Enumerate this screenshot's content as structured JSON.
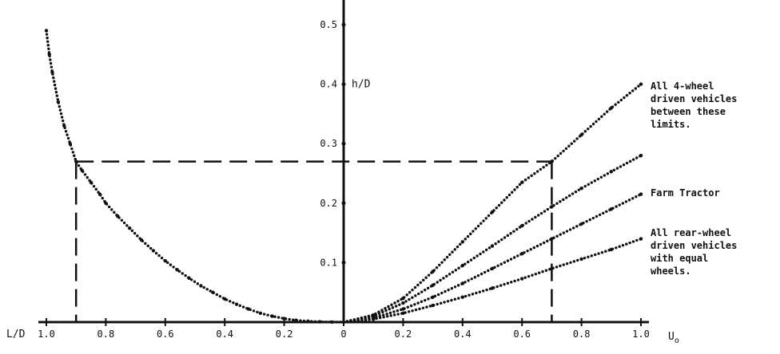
{
  "chart_data": {
    "type": "scatter",
    "x_axis": {
      "left_label": "L/D",
      "right_label": "U",
      "right_label_subscript": "o",
      "left_ticks": [
        "1.0",
        "0.8",
        "0.6",
        "0.4",
        "0.2"
      ],
      "right_ticks": [
        "0",
        "0.2",
        "0.4",
        "0.6",
        "0.8",
        "1.0"
      ],
      "left_range": [
        1.0,
        0
      ],
      "right_range": [
        0,
        1.0
      ]
    },
    "y_axis": {
      "label": "h/D",
      "ticks": [
        "0.5",
        "0.4",
        "0.3",
        "0.2",
        "0.1"
      ],
      "range": [
        0,
        0.55
      ]
    },
    "series": [
      {
        "id": "ld-curve",
        "side": "left",
        "points": [
          [
            1.0,
            0.49
          ],
          [
            0.99,
            0.45
          ],
          [
            0.98,
            0.42
          ],
          [
            0.96,
            0.37
          ],
          [
            0.94,
            0.33
          ],
          [
            0.92,
            0.3
          ],
          [
            0.9,
            0.27
          ],
          [
            0.88,
            0.255
          ],
          [
            0.85,
            0.235
          ],
          [
            0.82,
            0.215
          ],
          [
            0.8,
            0.2
          ],
          [
            0.76,
            0.178
          ],
          [
            0.72,
            0.158
          ],
          [
            0.68,
            0.138
          ],
          [
            0.64,
            0.12
          ],
          [
            0.6,
            0.103
          ],
          [
            0.56,
            0.088
          ],
          [
            0.52,
            0.074
          ],
          [
            0.48,
            0.061
          ],
          [
            0.44,
            0.05
          ],
          [
            0.4,
            0.039
          ],
          [
            0.36,
            0.03
          ],
          [
            0.32,
            0.022
          ],
          [
            0.28,
            0.015
          ],
          [
            0.24,
            0.01
          ],
          [
            0.2,
            0.006
          ],
          [
            0.16,
            0.003
          ],
          [
            0.12,
            0.0015
          ],
          [
            0.08,
            0.0005
          ],
          [
            0.04,
            0.0001
          ],
          [
            0.0,
            0.0
          ]
        ]
      },
      {
        "id": "upper-4wd-limit",
        "side": "right",
        "points": [
          [
            0,
            0
          ],
          [
            0.1,
            0.012
          ],
          [
            0.2,
            0.04
          ],
          [
            0.3,
            0.085
          ],
          [
            0.4,
            0.135
          ],
          [
            0.5,
            0.185
          ],
          [
            0.6,
            0.235
          ],
          [
            0.7,
            0.27
          ],
          [
            0.8,
            0.315
          ],
          [
            0.9,
            0.36
          ],
          [
            1.0,
            0.4
          ]
        ]
      },
      {
        "id": "lower-4wd-limit",
        "side": "right",
        "points": [
          [
            0,
            0
          ],
          [
            0.1,
            0.01
          ],
          [
            0.2,
            0.032
          ],
          [
            0.3,
            0.062
          ],
          [
            0.4,
            0.095
          ],
          [
            0.5,
            0.128
          ],
          [
            0.6,
            0.162
          ],
          [
            0.7,
            0.194
          ],
          [
            0.8,
            0.225
          ],
          [
            0.9,
            0.253
          ],
          [
            1.0,
            0.28
          ]
        ]
      },
      {
        "id": "farm-tractor",
        "side": "right",
        "points": [
          [
            0,
            0
          ],
          [
            0.1,
            0.007
          ],
          [
            0.2,
            0.022
          ],
          [
            0.3,
            0.042
          ],
          [
            0.4,
            0.065
          ],
          [
            0.5,
            0.09
          ],
          [
            0.6,
            0.115
          ],
          [
            0.7,
            0.14
          ],
          [
            0.8,
            0.165
          ],
          [
            0.9,
            0.19
          ],
          [
            1.0,
            0.215
          ]
        ]
      },
      {
        "id": "rear-wheel-equal",
        "side": "right",
        "points": [
          [
            0,
            0
          ],
          [
            0.1,
            0.005
          ],
          [
            0.2,
            0.015
          ],
          [
            0.3,
            0.028
          ],
          [
            0.4,
            0.042
          ],
          [
            0.5,
            0.057
          ],
          [
            0.6,
            0.073
          ],
          [
            0.7,
            0.09
          ],
          [
            0.8,
            0.106
          ],
          [
            0.9,
            0.122
          ],
          [
            1.0,
            0.14
          ]
        ]
      }
    ],
    "reference_lines": {
      "h": 0.27,
      "ld": 0.9,
      "uo": 0.7,
      "style": "dashed"
    },
    "annotations": [
      {
        "id": "annot-4wd",
        "lines": [
          "All 4-wheel",
          "driven vehicles",
          "between these",
          "limits."
        ]
      },
      {
        "id": "annot-tractor",
        "lines": [
          "Farm Tractor"
        ]
      },
      {
        "id": "annot-rear",
        "lines": [
          "All rear-wheel",
          "driven vehicles",
          "with equal",
          "wheels."
        ]
      }
    ],
    "grid": false,
    "legend": "none"
  }
}
